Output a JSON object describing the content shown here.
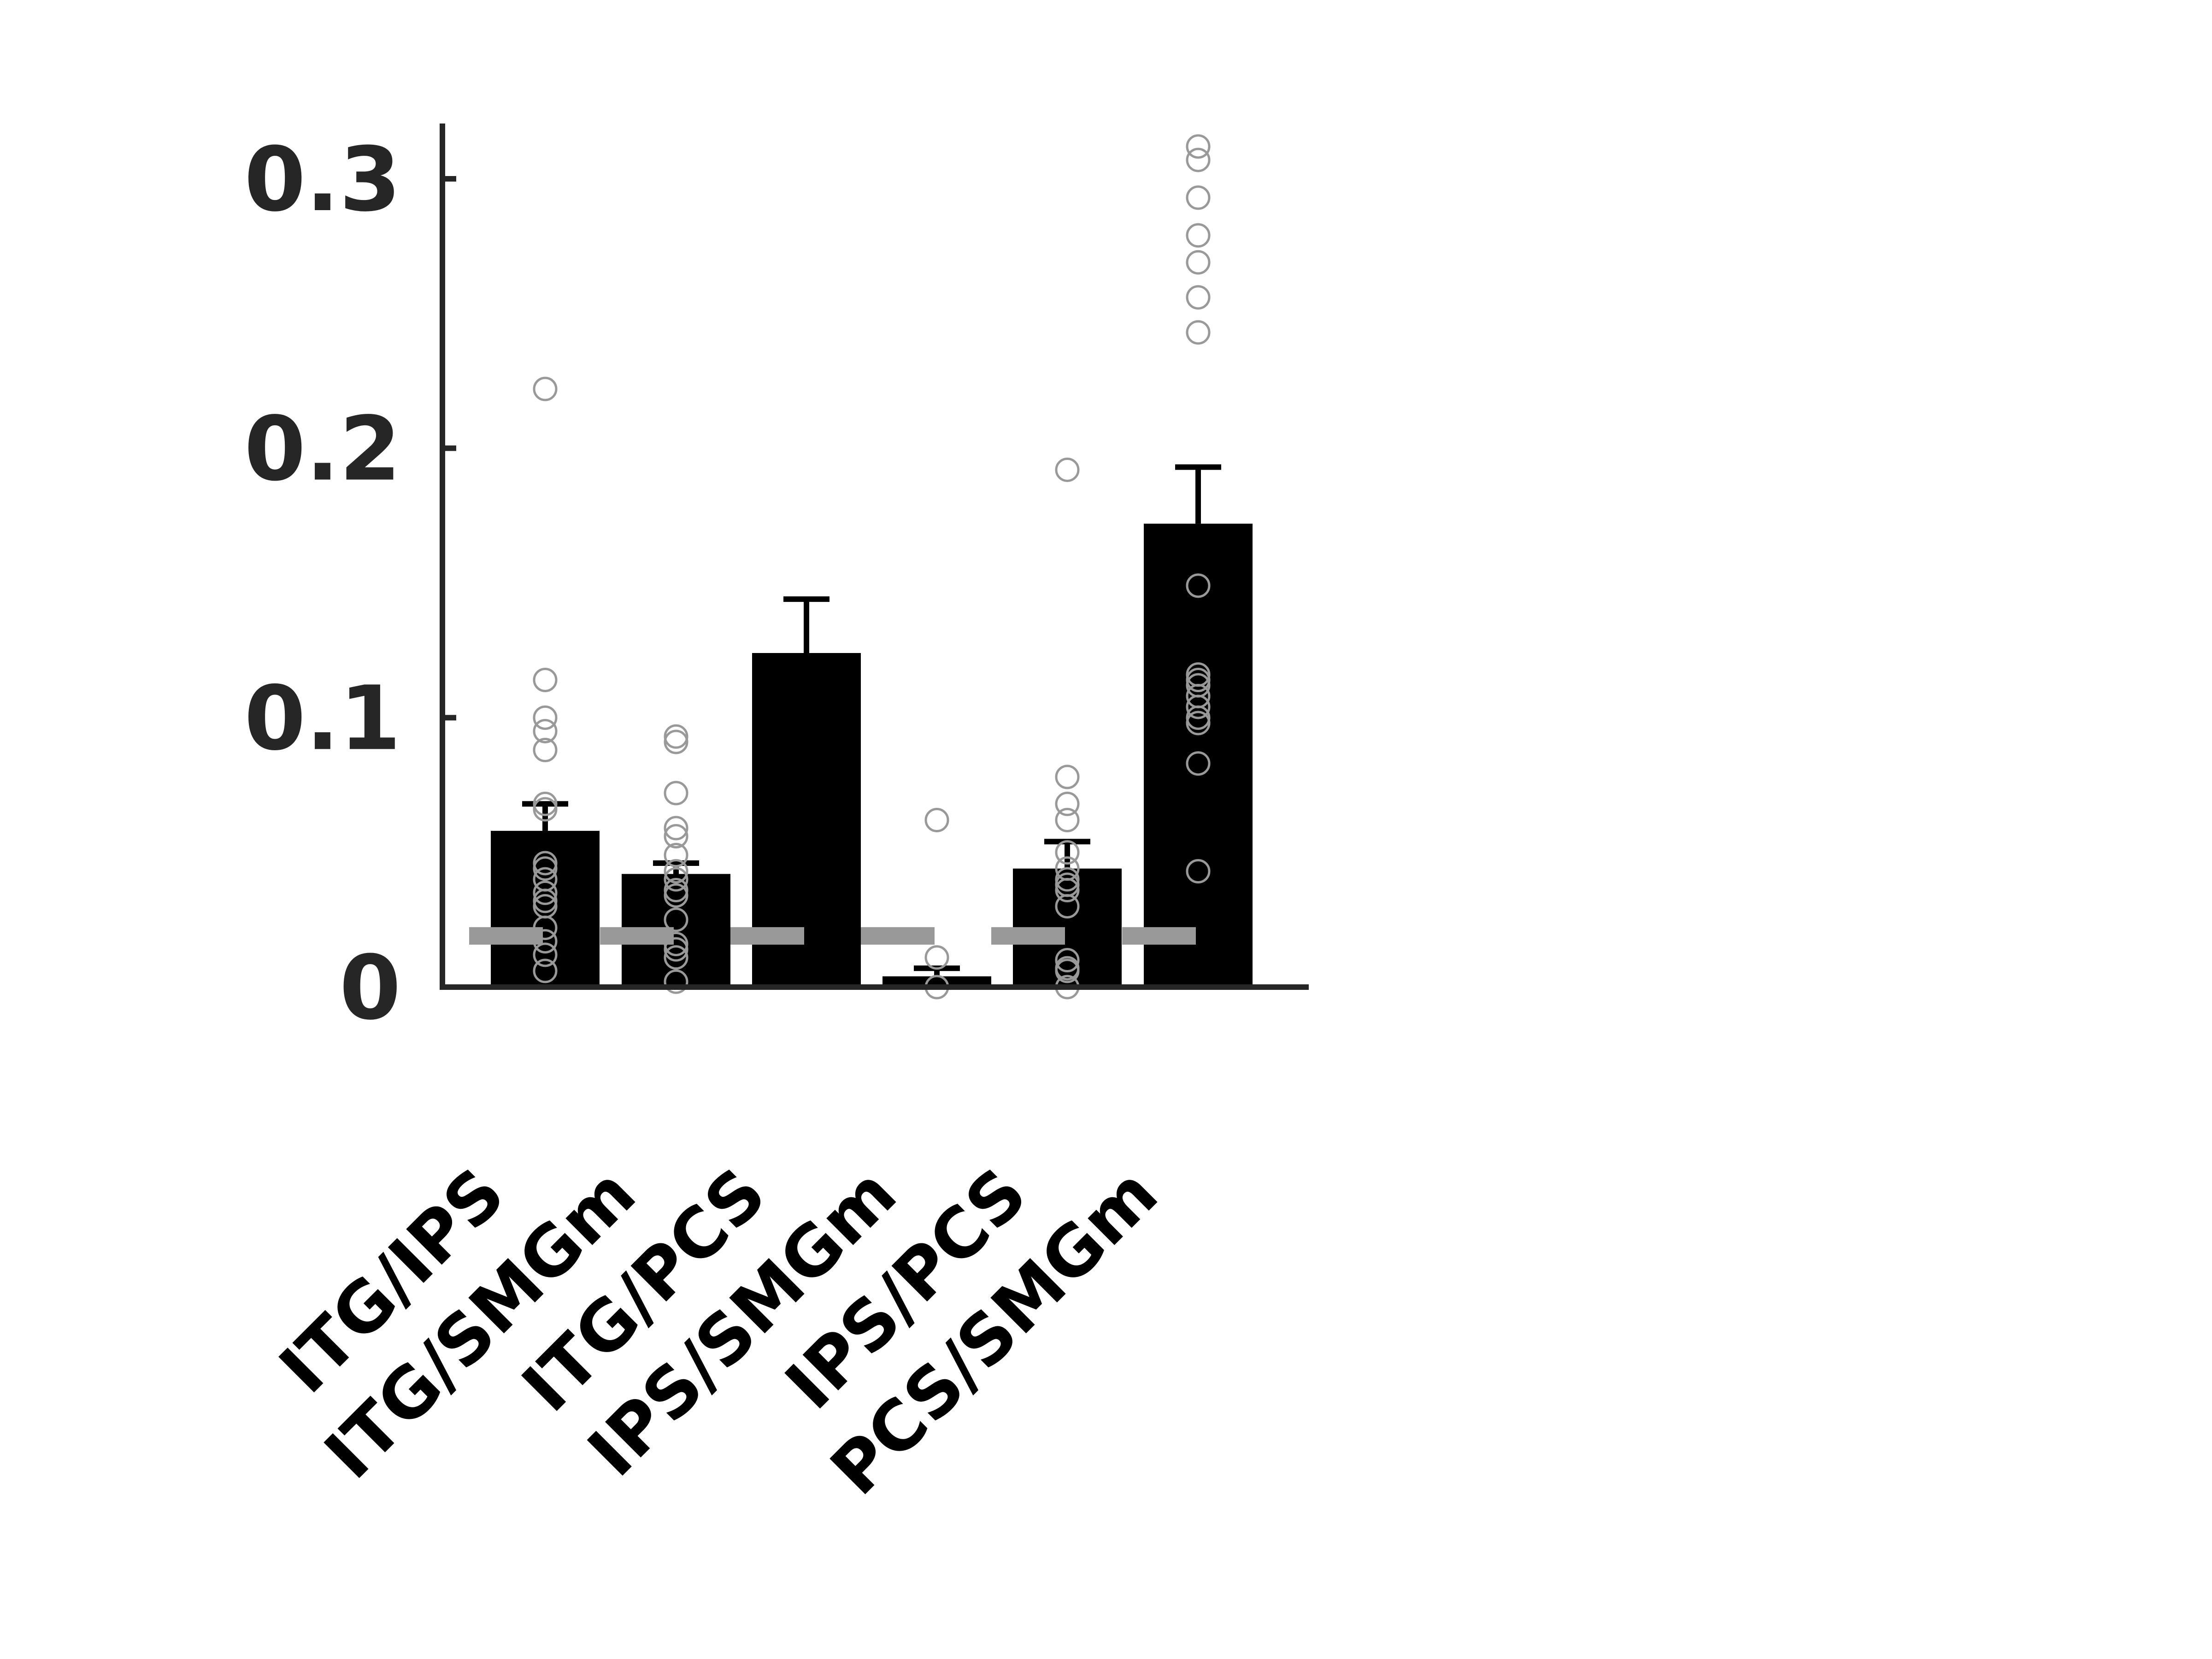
{
  "chart_data": {
    "type": "bar",
    "title": "",
    "xlabel": "",
    "ylabel": "",
    "ylim": [
      0,
      0.32
    ],
    "yticks": [
      0,
      0.1,
      0.2,
      0.3
    ],
    "ytick_labels": [
      "0",
      "0.1",
      "0.2",
      "0.3"
    ],
    "categories": [
      "ITG/IPS",
      "ITG/SMGm",
      "ITG/PCS",
      "IPS/SMGm",
      "IPS/PCS",
      "PCS/SMGm"
    ],
    "values": [
      0.058,
      0.042,
      0.124,
      0.004,
      0.044,
      0.172
    ],
    "error_upper": [
      0.068,
      0.046,
      0.144,
      0.007,
      0.054,
      0.193
    ],
    "chance_levels": [
      0.019,
      0.019,
      0.019,
      0.019,
      0.019,
      0.019
    ],
    "points": [
      [
        0.222,
        0.114,
        0.1,
        0.095,
        0.088,
        0.068,
        0.066,
        0.046,
        0.044,
        0.04,
        0.035,
        0.032,
        0.03,
        0.022,
        0.017,
        0.012,
        0.006
      ],
      [
        0.093,
        0.091,
        0.072,
        0.059,
        0.056,
        0.049,
        0.043,
        0.04,
        0.036,
        0.034,
        0.025,
        0.016,
        0.014,
        0.011,
        0.002
      ],
      [],
      [
        0.062,
        0.011,
        0.0
      ],
      [
        0.192,
        0.078,
        0.068,
        0.062,
        0.05,
        0.044,
        0.04,
        0.038,
        0.036,
        0.03,
        0.01,
        0.007,
        0.006,
        0.0
      ],
      [
        0.312,
        0.307,
        0.293,
        0.279,
        0.269,
        0.256,
        0.243,
        0.149,
        0.116,
        0.114,
        0.112,
        0.108,
        0.104,
        0.1,
        0.098,
        0.083,
        0.043
      ]
    ],
    "colors": {
      "bar": "#000000",
      "axis": "#262626",
      "point": "#999999",
      "chance": "#999999",
      "label": "#000000"
    }
  }
}
